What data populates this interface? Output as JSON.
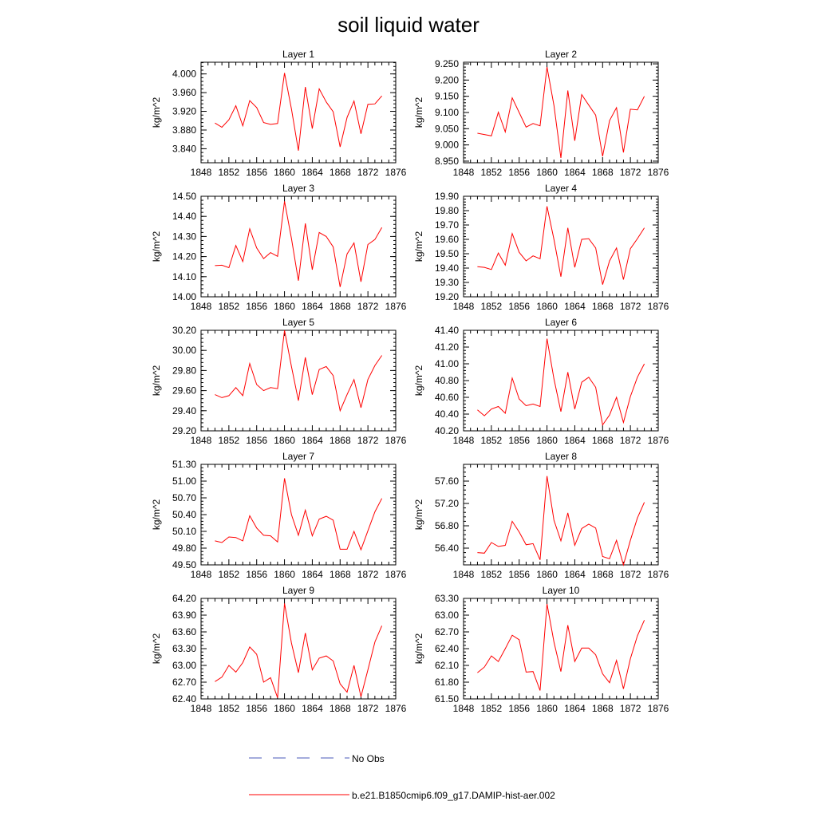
{
  "figure": {
    "title": "soil liquid water"
  },
  "colors": {
    "model": "#ff0000",
    "obs": "#4a5ab8"
  },
  "legend": {
    "placement": "bottom",
    "entries": [
      {
        "label": "No Obs",
        "style": "dashed",
        "color": "#4a5ab8"
      },
      {
        "label": "b.e21.B1850cmip6.f09_g17.DAMIP-hist-aer.002",
        "style": "solid",
        "color": "#ff0000"
      }
    ]
  },
  "chart_data": [
    {
      "type": "line",
      "title": "Layer 1",
      "ylabel": "kg/m^2",
      "xlim": [
        1848,
        1876
      ],
      "xticks": [
        1848,
        1852,
        1856,
        1860,
        1864,
        1868,
        1872,
        1876
      ],
      "ylim": [
        3.81,
        4.025
      ],
      "yticks": [
        "3.840",
        "3.880",
        "3.920",
        "3.960",
        "4.000"
      ],
      "x": [
        1850,
        1851,
        1852,
        1853,
        1854,
        1855,
        1856,
        1857,
        1858,
        1859,
        1860,
        1861,
        1862,
        1863,
        1864,
        1865,
        1866,
        1867,
        1868,
        1869,
        1870,
        1871,
        1872,
        1873,
        1874
      ],
      "series": [
        {
          "name": "b.e21.B1850cmip6.f09_g17.DAMIP-hist-aer.002",
          "values": [
            3.895,
            3.886,
            3.902,
            3.932,
            3.889,
            3.943,
            3.928,
            3.896,
            3.892,
            3.894,
            4.002,
            3.925,
            3.836,
            3.972,
            3.883,
            3.968,
            3.94,
            3.919,
            3.844,
            3.907,
            3.942,
            3.872,
            3.935,
            3.936,
            3.953
          ]
        }
      ]
    },
    {
      "type": "line",
      "title": "Layer 2",
      "ylabel": "kg/m^2",
      "xlim": [
        1848,
        1876
      ],
      "xticks": [
        1848,
        1852,
        1856,
        1860,
        1864,
        1868,
        1872,
        1876
      ],
      "ylim": [
        8.945,
        9.255
      ],
      "yticks": [
        "8.950",
        "9.000",
        "9.050",
        "9.100",
        "9.150",
        "9.200",
        "9.250"
      ],
      "x": [
        1850,
        1851,
        1852,
        1853,
        1854,
        1855,
        1856,
        1857,
        1858,
        1859,
        1860,
        1861,
        1862,
        1863,
        1864,
        1865,
        1866,
        1867,
        1868,
        1869,
        1870,
        1871,
        1872,
        1873,
        1874
      ],
      "series": [
        {
          "name": "b.e21.B1850cmip6.f09_g17.DAMIP-hist-aer.002",
          "values": [
            9.036,
            9.032,
            9.028,
            9.101,
            9.04,
            9.145,
            9.1,
            9.055,
            9.066,
            9.059,
            9.24,
            9.122,
            8.96,
            9.168,
            9.013,
            9.155,
            9.123,
            9.092,
            8.965,
            9.075,
            9.115,
            8.977,
            9.11,
            9.108,
            9.15
          ]
        }
      ]
    },
    {
      "type": "line",
      "title": "Layer 3",
      "ylabel": "kg/m^2",
      "xlim": [
        1848,
        1876
      ],
      "xticks": [
        1848,
        1852,
        1856,
        1860,
        1864,
        1868,
        1872,
        1876
      ],
      "ylim": [
        14.0,
        14.5
      ],
      "yticks": [
        "14.00",
        "14.10",
        "14.20",
        "14.30",
        "14.40",
        "14.50"
      ],
      "x": [
        1850,
        1851,
        1852,
        1853,
        1854,
        1855,
        1856,
        1857,
        1858,
        1859,
        1860,
        1861,
        1862,
        1863,
        1864,
        1865,
        1866,
        1867,
        1868,
        1869,
        1870,
        1871,
        1872,
        1873,
        1874
      ],
      "series": [
        {
          "name": "b.e21.B1850cmip6.f09_g17.DAMIP-hist-aer.002",
          "values": [
            14.155,
            14.157,
            14.145,
            14.255,
            14.175,
            14.338,
            14.243,
            14.19,
            14.22,
            14.201,
            14.475,
            14.29,
            14.08,
            14.365,
            14.135,
            14.32,
            14.3,
            14.248,
            14.049,
            14.213,
            14.268,
            14.075,
            14.26,
            14.285,
            14.345
          ]
        }
      ]
    },
    {
      "type": "line",
      "title": "Layer 4",
      "ylabel": "kg/m^2",
      "xlim": [
        1848,
        1876
      ],
      "xticks": [
        1848,
        1852,
        1856,
        1860,
        1864,
        1868,
        1872,
        1876
      ],
      "ylim": [
        19.2,
        19.9
      ],
      "yticks": [
        "19.20",
        "19.30",
        "19.40",
        "19.50",
        "19.60",
        "19.70",
        "19.80",
        "19.90"
      ],
      "x": [
        1850,
        1851,
        1852,
        1853,
        1854,
        1855,
        1856,
        1857,
        1858,
        1859,
        1860,
        1861,
        1862,
        1863,
        1864,
        1865,
        1866,
        1867,
        1868,
        1869,
        1870,
        1871,
        1872,
        1873,
        1874
      ],
      "series": [
        {
          "name": "b.e21.B1850cmip6.f09_g17.DAMIP-hist-aer.002",
          "values": [
            19.41,
            19.405,
            19.39,
            19.505,
            19.42,
            19.64,
            19.51,
            19.45,
            19.485,
            19.465,
            19.83,
            19.6,
            19.34,
            19.68,
            19.405,
            19.6,
            19.605,
            19.54,
            19.285,
            19.45,
            19.54,
            19.32,
            19.535,
            19.605,
            19.68
          ]
        }
      ]
    },
    {
      "type": "line",
      "title": "Layer 5",
      "ylabel": "kg/m^2",
      "xlim": [
        1848,
        1876
      ],
      "xticks": [
        1848,
        1852,
        1856,
        1860,
        1864,
        1868,
        1872,
        1876
      ],
      "ylim": [
        29.2,
        30.2
      ],
      "yticks": [
        "29.20",
        "29.40",
        "29.60",
        "29.80",
        "30.00",
        "30.20"
      ],
      "x": [
        1850,
        1851,
        1852,
        1853,
        1854,
        1855,
        1856,
        1857,
        1858,
        1859,
        1860,
        1861,
        1862,
        1863,
        1864,
        1865,
        1866,
        1867,
        1868,
        1869,
        1870,
        1871,
        1872,
        1873,
        1874
      ],
      "series": [
        {
          "name": "b.e21.B1850cmip6.f09_g17.DAMIP-hist-aer.002",
          "values": [
            29.56,
            29.53,
            29.55,
            29.63,
            29.55,
            29.87,
            29.66,
            29.6,
            29.63,
            29.62,
            30.2,
            29.84,
            29.5,
            29.93,
            29.56,
            29.81,
            29.84,
            29.75,
            29.4,
            29.56,
            29.71,
            29.43,
            29.71,
            29.85,
            29.95
          ]
        }
      ]
    },
    {
      "type": "line",
      "title": "Layer 6",
      "ylabel": "kg/m^2",
      "xlim": [
        1848,
        1876
      ],
      "xticks": [
        1848,
        1852,
        1856,
        1860,
        1864,
        1868,
        1872,
        1876
      ],
      "ylim": [
        40.2,
        41.4
      ],
      "yticks": [
        "40.20",
        "40.40",
        "40.60",
        "40.80",
        "41.00",
        "41.20",
        "41.40"
      ],
      "x": [
        1850,
        1851,
        1852,
        1853,
        1854,
        1855,
        1856,
        1857,
        1858,
        1859,
        1860,
        1861,
        1862,
        1863,
        1864,
        1865,
        1866,
        1867,
        1868,
        1869,
        1870,
        1871,
        1872,
        1873,
        1874
      ],
      "series": [
        {
          "name": "b.e21.B1850cmip6.f09_g17.DAMIP-hist-aer.002",
          "values": [
            40.45,
            40.38,
            40.46,
            40.49,
            40.41,
            40.83,
            40.58,
            40.5,
            40.52,
            40.49,
            41.3,
            40.82,
            40.43,
            40.9,
            40.46,
            40.78,
            40.84,
            40.72,
            40.27,
            40.39,
            40.6,
            40.3,
            40.61,
            40.84,
            41.0
          ]
        }
      ]
    },
    {
      "type": "line",
      "title": "Layer 7",
      "ylabel": "kg/m^2",
      "xlim": [
        1848,
        1876
      ],
      "xticks": [
        1848,
        1852,
        1856,
        1860,
        1864,
        1868,
        1872,
        1876
      ],
      "ylim": [
        49.5,
        51.3
      ],
      "yticks": [
        "49.50",
        "49.80",
        "50.10",
        "50.40",
        "50.70",
        "51.00",
        "51.30"
      ],
      "x": [
        1850,
        1851,
        1852,
        1853,
        1854,
        1855,
        1856,
        1857,
        1858,
        1859,
        1860,
        1861,
        1862,
        1863,
        1864,
        1865,
        1866,
        1867,
        1868,
        1869,
        1870,
        1871,
        1872,
        1873,
        1874
      ],
      "series": [
        {
          "name": "b.e21.B1850cmip6.f09_g17.DAMIP-hist-aer.002",
          "values": [
            49.93,
            49.9,
            50.0,
            49.99,
            49.93,
            50.38,
            50.16,
            50.03,
            50.02,
            49.91,
            51.05,
            50.4,
            50.03,
            50.48,
            50.02,
            50.32,
            50.37,
            50.3,
            49.78,
            49.78,
            50.1,
            49.77,
            50.11,
            50.45,
            50.69
          ]
        }
      ]
    },
    {
      "type": "line",
      "title": "Layer 8",
      "ylabel": "kg/m^2",
      "xlim": [
        1848,
        1876
      ],
      "xticks": [
        1848,
        1852,
        1856,
        1860,
        1864,
        1868,
        1872,
        1876
      ],
      "ylim": [
        56.1,
        57.9
      ],
      "yticks": [
        "56.40",
        "56.80",
        "57.20",
        "57.60"
      ],
      "x": [
        1850,
        1851,
        1852,
        1853,
        1854,
        1855,
        1856,
        1857,
        1858,
        1859,
        1860,
        1861,
        1862,
        1863,
        1864,
        1865,
        1866,
        1867,
        1868,
        1869,
        1870,
        1871,
        1872,
        1873,
        1874
      ],
      "series": [
        {
          "name": "b.e21.B1850cmip6.f09_g17.DAMIP-hist-aer.002",
          "values": [
            56.32,
            56.31,
            56.5,
            56.43,
            56.45,
            56.88,
            56.69,
            56.46,
            56.48,
            56.19,
            57.69,
            56.9,
            56.53,
            57.03,
            56.45,
            56.75,
            56.83,
            56.76,
            56.25,
            56.21,
            56.54,
            56.1,
            56.54,
            56.94,
            57.22
          ]
        }
      ]
    },
    {
      "type": "line",
      "title": "Layer 9",
      "ylabel": "kg/m^2",
      "xlim": [
        1848,
        1876
      ],
      "xticks": [
        1848,
        1852,
        1856,
        1860,
        1864,
        1868,
        1872,
        1876
      ],
      "ylim": [
        62.4,
        64.2
      ],
      "yticks": [
        "62.40",
        "62.70",
        "63.00",
        "63.30",
        "63.60",
        "63.90",
        "64.20"
      ],
      "x": [
        1850,
        1851,
        1852,
        1853,
        1854,
        1855,
        1856,
        1857,
        1858,
        1859,
        1860,
        1861,
        1862,
        1863,
        1864,
        1865,
        1866,
        1867,
        1868,
        1869,
        1870,
        1871,
        1872,
        1873,
        1874
      ],
      "series": [
        {
          "name": "b.e21.B1850cmip6.f09_g17.DAMIP-hist-aer.002",
          "values": [
            62.71,
            62.79,
            63.0,
            62.88,
            63.05,
            63.33,
            63.2,
            62.7,
            62.78,
            62.42,
            64.11,
            63.4,
            62.87,
            63.58,
            62.92,
            63.13,
            63.17,
            63.08,
            62.67,
            62.52,
            63.0,
            62.44,
            62.92,
            63.42,
            63.71
          ]
        }
      ]
    },
    {
      "type": "line",
      "title": "Layer 10",
      "ylabel": "kg/m^2",
      "xlim": [
        1848,
        1876
      ],
      "xticks": [
        1848,
        1852,
        1856,
        1860,
        1864,
        1868,
        1872,
        1876
      ],
      "ylim": [
        61.5,
        63.3
      ],
      "yticks": [
        "61.50",
        "61.80",
        "62.10",
        "62.40",
        "62.70",
        "63.00",
        "63.30"
      ],
      "x": [
        1850,
        1851,
        1852,
        1853,
        1854,
        1855,
        1856,
        1857,
        1858,
        1859,
        1860,
        1861,
        1862,
        1863,
        1864,
        1865,
        1866,
        1867,
        1868,
        1869,
        1870,
        1871,
        1872,
        1873,
        1874
      ],
      "series": [
        {
          "name": "b.e21.B1850cmip6.f09_g17.DAMIP-hist-aer.002",
          "values": [
            61.97,
            62.07,
            62.27,
            62.17,
            62.4,
            62.64,
            62.56,
            61.98,
            61.99,
            61.65,
            63.2,
            62.52,
            61.99,
            62.82,
            62.17,
            62.41,
            62.41,
            62.29,
            61.95,
            61.79,
            62.19,
            61.68,
            62.22,
            62.63,
            62.91
          ]
        }
      ]
    }
  ]
}
